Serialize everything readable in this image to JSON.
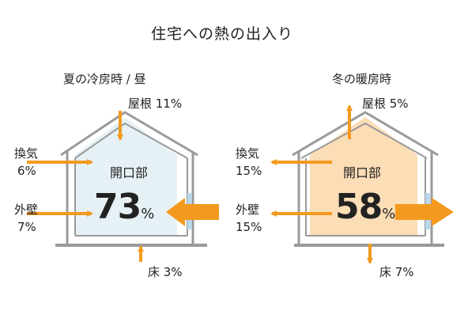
{
  "title": "住宅への熱の出入り",
  "summer": {
    "heading": "夏の冷房時 / 昼",
    "roof": "屋根 11%",
    "vent_name": "換気",
    "vent_val": "6%",
    "wall_name": "外壁",
    "wall_val": "7%",
    "opening_label": "開口部",
    "opening_value": "73",
    "opening_unit": "%",
    "floor": "床 3%"
  },
  "winter": {
    "heading": "冬の暖房時",
    "roof": "屋根 5%",
    "vent_name": "換気",
    "vent_val": "15%",
    "wall_name": "外壁",
    "wall_val": "15%",
    "opening_label": "開口部",
    "opening_value": "58",
    "opening_unit": "%",
    "floor": "床 7%"
  },
  "colors": {
    "arrow": "#F39A1E",
    "house_outline": "#9a9a9a",
    "summer_fill": "#E6F1F6",
    "winter_fill": "#FBDDB6",
    "window": "#B9D8E8"
  }
}
